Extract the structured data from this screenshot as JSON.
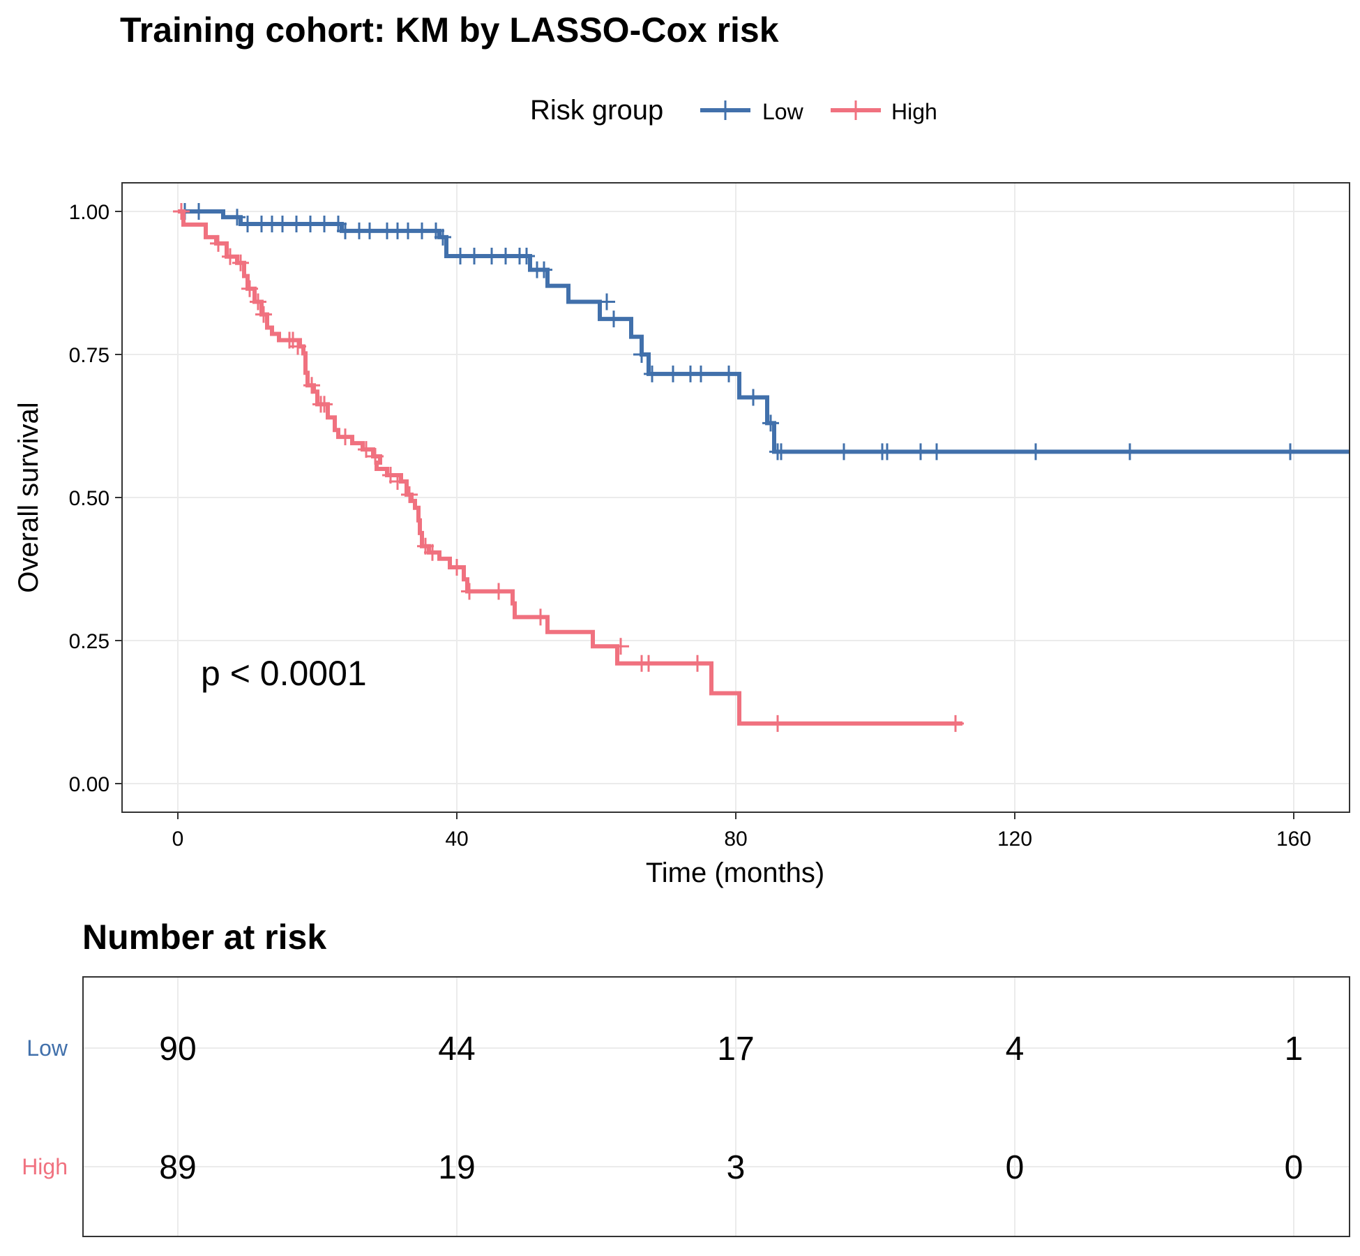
{
  "chart_data": {
    "type": "line",
    "subtype": "kaplan-meier",
    "title": "Training cohort: KM by LASSO-Cox risk",
    "xlabel": "Time (months)",
    "ylabel": "Overall survival",
    "xlim": [
      -8,
      168
    ],
    "ylim": [
      -0.05,
      1.05
    ],
    "xticks": [
      0,
      40,
      80,
      120,
      160
    ],
    "yticks": [
      0.0,
      0.25,
      0.5,
      0.75,
      1.0
    ],
    "ytick_labels": [
      "0.00",
      "0.25",
      "0.50",
      "0.75",
      "1.00"
    ],
    "grid": true,
    "legend": {
      "title": "Risk group",
      "position": "top",
      "entries": [
        "Low",
        "High"
      ]
    },
    "annotation": "p < 0.0001",
    "series": [
      {
        "name": "Low",
        "color": "#4170ab",
        "steps": [
          [
            0,
            1.0
          ],
          [
            6.5,
            0.99
          ],
          [
            9,
            0.978
          ],
          [
            23.5,
            0.966
          ],
          [
            37.5,
            0.955
          ],
          [
            38.5,
            0.922
          ],
          [
            50.5,
            0.898
          ],
          [
            53,
            0.87
          ],
          [
            56,
            0.842
          ],
          [
            60.5,
            0.812
          ],
          [
            65,
            0.781
          ],
          [
            66.5,
            0.75
          ],
          [
            67.5,
            0.716
          ],
          [
            80.5,
            0.675
          ],
          [
            84.5,
            0.63
          ],
          [
            85.5,
            0.58
          ],
          [
            168,
            0.58
          ]
        ],
        "censored": [
          [
            1,
            1.0
          ],
          [
            3,
            1.0
          ],
          [
            8.5,
            0.99
          ],
          [
            10,
            0.978
          ],
          [
            12,
            0.978
          ],
          [
            13.5,
            0.978
          ],
          [
            15,
            0.978
          ],
          [
            17,
            0.978
          ],
          [
            19,
            0.978
          ],
          [
            21,
            0.978
          ],
          [
            23,
            0.978
          ],
          [
            24,
            0.966
          ],
          [
            26,
            0.966
          ],
          [
            27.5,
            0.966
          ],
          [
            30,
            0.966
          ],
          [
            31.5,
            0.966
          ],
          [
            33,
            0.966
          ],
          [
            35,
            0.966
          ],
          [
            37,
            0.966
          ],
          [
            38,
            0.955
          ],
          [
            40.5,
            0.922
          ],
          [
            42.5,
            0.922
          ],
          [
            45,
            0.922
          ],
          [
            47,
            0.922
          ],
          [
            49,
            0.922
          ],
          [
            50,
            0.922
          ],
          [
            51.5,
            0.898
          ],
          [
            52.5,
            0.898
          ],
          [
            61.5,
            0.842
          ],
          [
            62.5,
            0.812
          ],
          [
            66.5,
            0.75
          ],
          [
            68,
            0.716
          ],
          [
            71,
            0.716
          ],
          [
            73.5,
            0.716
          ],
          [
            75,
            0.716
          ],
          [
            79,
            0.716
          ],
          [
            82.5,
            0.675
          ],
          [
            85,
            0.63
          ],
          [
            86,
            0.58
          ],
          [
            86.5,
            0.58
          ],
          [
            95.5,
            0.58
          ],
          [
            101,
            0.58
          ],
          [
            101.7,
            0.58
          ],
          [
            106.5,
            0.58
          ],
          [
            108.8,
            0.58
          ],
          [
            123,
            0.58
          ],
          [
            136.5,
            0.58
          ],
          [
            159.5,
            0.58
          ]
        ]
      },
      {
        "name": "High",
        "color": "#f0717f",
        "steps": [
          [
            0,
            1.0
          ],
          [
            0.8,
            0.977
          ],
          [
            4,
            0.955
          ],
          [
            5.5,
            0.944
          ],
          [
            7,
            0.921
          ],
          [
            8.5,
            0.91
          ],
          [
            9.5,
            0.887
          ],
          [
            10,
            0.865
          ],
          [
            11,
            0.842
          ],
          [
            12,
            0.82
          ],
          [
            12.8,
            0.797
          ],
          [
            13.5,
            0.786
          ],
          [
            14.5,
            0.775
          ],
          [
            17.5,
            0.764
          ],
          [
            18,
            0.752
          ],
          [
            18.3,
            0.718
          ],
          [
            18.6,
            0.696
          ],
          [
            19.5,
            0.685
          ],
          [
            20,
            0.663
          ],
          [
            21.5,
            0.64
          ],
          [
            22.5,
            0.618
          ],
          [
            23,
            0.606
          ],
          [
            25,
            0.595
          ],
          [
            26.5,
            0.584
          ],
          [
            28,
            0.572
          ],
          [
            29,
            0.561
          ],
          [
            28.5,
            0.55
          ],
          [
            30,
            0.539
          ],
          [
            32,
            0.528
          ],
          [
            32.8,
            0.505
          ],
          [
            33.5,
            0.494
          ],
          [
            34,
            0.482
          ],
          [
            34.5,
            0.46
          ],
          [
            34.7,
            0.438
          ],
          [
            35,
            0.415
          ],
          [
            36,
            0.404
          ],
          [
            37.5,
            0.393
          ],
          [
            39,
            0.378
          ],
          [
            41,
            0.357
          ],
          [
            41.5,
            0.336
          ],
          [
            48,
            0.315
          ],
          [
            48.3,
            0.291
          ],
          [
            53,
            0.265
          ],
          [
            59.5,
            0.24
          ],
          [
            63,
            0.21
          ],
          [
            76.5,
            0.158
          ],
          [
            80.5,
            0.105
          ],
          [
            112.5,
            0.105
          ]
        ],
        "censored": [
          [
            0.5,
            1.0
          ],
          [
            5.8,
            0.944
          ],
          [
            7.5,
            0.921
          ],
          [
            9,
            0.91
          ],
          [
            10.3,
            0.865
          ],
          [
            11.5,
            0.842
          ],
          [
            12.3,
            0.82
          ],
          [
            16,
            0.775
          ],
          [
            16.5,
            0.775
          ],
          [
            17.2,
            0.764
          ],
          [
            19.2,
            0.696
          ],
          [
            20.5,
            0.663
          ],
          [
            21,
            0.663
          ],
          [
            24,
            0.606
          ],
          [
            27,
            0.584
          ],
          [
            28.3,
            0.572
          ],
          [
            30.5,
            0.539
          ],
          [
            31.5,
            0.528
          ],
          [
            33.2,
            0.505
          ],
          [
            35.5,
            0.415
          ],
          [
            36.5,
            0.404
          ],
          [
            40,
            0.378
          ],
          [
            41.8,
            0.336
          ],
          [
            46,
            0.336
          ],
          [
            52,
            0.291
          ],
          [
            63.5,
            0.24
          ],
          [
            66.5,
            0.21
          ],
          [
            67.5,
            0.21
          ],
          [
            74.5,
            0.21
          ],
          [
            86,
            0.105
          ],
          [
            111.5,
            0.105
          ]
        ]
      }
    ],
    "risk_table": {
      "title": "Number at risk",
      "times": [
        0,
        40,
        80,
        120,
        160
      ],
      "rows": [
        {
          "name": "Low",
          "color": "#4170ab",
          "values": [
            "90",
            "44",
            "17",
            "4",
            "1"
          ]
        },
        {
          "name": "High",
          "color": "#f0717f",
          "values": [
            "89",
            "19",
            "3",
            "0",
            "0"
          ]
        }
      ]
    }
  }
}
